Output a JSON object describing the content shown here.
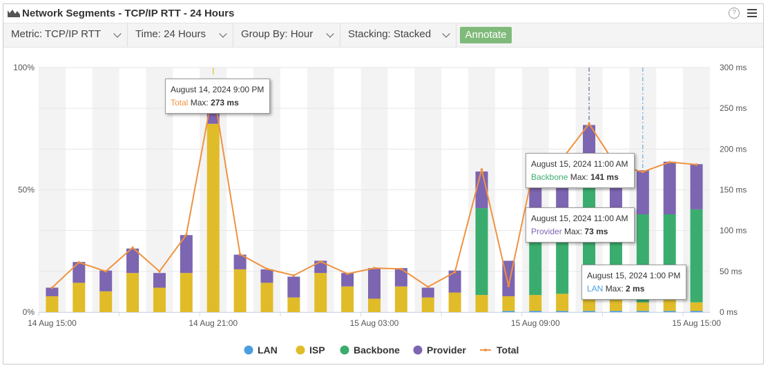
{
  "header": {
    "title": "Network Segments - TCP/IP RTT - 24 Hours",
    "icons": [
      "area-chart-icon",
      "help-icon",
      "hamburger-menu-icon"
    ],
    "help_glyph": "?"
  },
  "toolbar": {
    "metric_label": "Metric: TCP/IP RTT",
    "time_label": "Time: 24 Hours",
    "group_label": "Group By: Hour",
    "stacking_label": "Stacking: Stacked",
    "annotate_label": "Annotate"
  },
  "colors": {
    "LAN": "#4a9fe0",
    "ISP": "#e1bc29",
    "Backbone": "#3aad6e",
    "Provider": "#7c65b1",
    "Total": "#f0923e",
    "band": "#f3f3f3",
    "gridline": "#e6e6e6"
  },
  "chart_data": {
    "type": "bar",
    "stacking": "stacked",
    "x": [
      "14 Aug 15:00",
      "14 Aug 16:00",
      "14 Aug 17:00",
      "14 Aug 18:00",
      "14 Aug 19:00",
      "14 Aug 20:00",
      "14 Aug 21:00",
      "14 Aug 22:00",
      "14 Aug 23:00",
      "15 Aug 00:00",
      "15 Aug 01:00",
      "15 Aug 02:00",
      "15 Aug 03:00",
      "15 Aug 04:00",
      "15 Aug 05:00",
      "15 Aug 06:00",
      "15 Aug 07:00",
      "15 Aug 08:00",
      "15 Aug 09:00",
      "15 Aug 10:00",
      "15 Aug 11:00",
      "15 Aug 12:00",
      "15 Aug 13:00",
      "15 Aug 14:00",
      "15 Aug 15:00"
    ],
    "x_tick_labels": [
      "14 Aug 15:00",
      "14 Aug 21:00",
      "15 Aug 03:00",
      "15 Aug 09:00",
      "15 Aug 15:00"
    ],
    "y_left_ticks": [
      "0%",
      "50%",
      "100%"
    ],
    "y_right_ticks": [
      "0 ms",
      "50 ms",
      "100 ms",
      "150 ms",
      "200 ms",
      "250 ms",
      "300 ms"
    ],
    "ylim_left": [
      0,
      100
    ],
    "ylim_right": [
      0,
      300
    ],
    "series": [
      {
        "name": "LAN",
        "values": [
          0,
          0,
          0,
          0,
          0,
          0,
          0,
          0,
          0,
          0,
          0,
          0,
          0,
          0,
          0,
          0,
          0,
          0.5,
          0.5,
          0.5,
          0.5,
          0.5,
          0.5,
          0.5,
          0.5
        ]
      },
      {
        "name": "ISP",
        "values": [
          6.5,
          12,
          8.5,
          16,
          10,
          16,
          77,
          17.5,
          12,
          6,
          16,
          10.5,
          5.5,
          10.5,
          6,
          8,
          7,
          6,
          6.5,
          7,
          5,
          4.5,
          3.5,
          4.5,
          3.5
        ]
      },
      {
        "name": "Backbone",
        "values": [
          0,
          0,
          0,
          0,
          0,
          0,
          0,
          0,
          0,
          0,
          0,
          0,
          0,
          0,
          0,
          0,
          35.5,
          0,
          33,
          31,
          47,
          32,
          36,
          35,
          38
        ]
      },
      {
        "name": "Provider",
        "values": [
          3.5,
          8.5,
          8.5,
          10,
          6,
          15.5,
          6,
          6,
          5.5,
          8.5,
          5,
          5.5,
          12.5,
          7.5,
          4,
          9,
          15,
          14.5,
          25,
          25,
          24,
          16,
          18,
          21.5,
          18.5
        ]
      }
    ],
    "total_series": {
      "name": "Total",
      "values": [
        30,
        61,
        50,
        79,
        50,
        95,
        273,
        71,
        53,
        45,
        62,
        47,
        54,
        53,
        31,
        49,
        175,
        32,
        186,
        188,
        231,
        180,
        172,
        184,
        181
      ]
    },
    "legend": [
      "LAN",
      "ISP",
      "Backbone",
      "Provider",
      "Total"
    ],
    "legend_position": "bottom-center",
    "tooltips": [
      {
        "date": "August 14, 2024 9:00 PM",
        "series": "Total",
        "label": "Max:",
        "value": "273 ms"
      },
      {
        "date": "August 15, 2024 11:00 AM",
        "series": "Backbone",
        "label": "Max:",
        "value": "141 ms"
      },
      {
        "date": "August 15, 2024 11:00 AM",
        "series": "Provider",
        "label": "Max:",
        "value": "73 ms"
      },
      {
        "date": "August 15, 2024 1:00 PM",
        "series": "LAN",
        "label": "Max:",
        "value": "2 ms"
      }
    ]
  }
}
